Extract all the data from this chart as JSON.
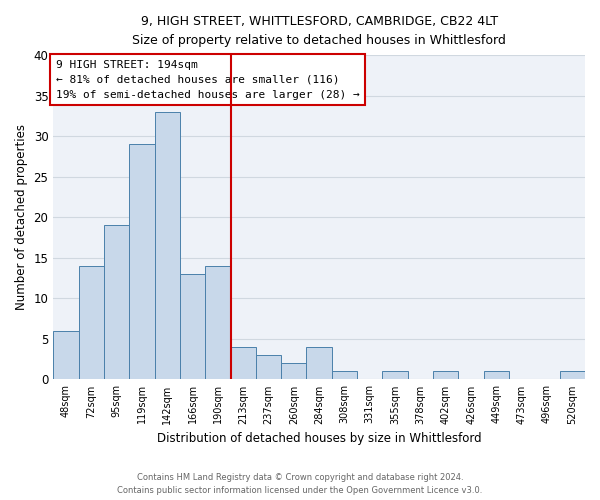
{
  "title_line1": "9, HIGH STREET, WHITTLESFORD, CAMBRIDGE, CB22 4LT",
  "title_line2": "Size of property relative to detached houses in Whittlesford",
  "xlabel": "Distribution of detached houses by size in Whittlesford",
  "ylabel": "Number of detached properties",
  "footer_line1": "Contains HM Land Registry data © Crown copyright and database right 2024.",
  "footer_line2": "Contains public sector information licensed under the Open Government Licence v3.0.",
  "bin_labels": [
    "48sqm",
    "72sqm",
    "95sqm",
    "119sqm",
    "142sqm",
    "166sqm",
    "190sqm",
    "213sqm",
    "237sqm",
    "260sqm",
    "284sqm",
    "308sqm",
    "331sqm",
    "355sqm",
    "378sqm",
    "402sqm",
    "426sqm",
    "449sqm",
    "473sqm",
    "496sqm",
    "520sqm"
  ],
  "bar_heights": [
    6,
    14,
    19,
    29,
    33,
    13,
    14,
    4,
    3,
    2,
    4,
    1,
    0,
    1,
    0,
    1,
    0,
    1,
    0,
    0,
    1
  ],
  "bar_color": "#c8d8ea",
  "bar_edge_color": "#4a80aa",
  "grid_color": "#d0d8e0",
  "background_color": "#eef2f8",
  "vline_color": "#cc0000",
  "annotation_text_line1": "9 HIGH STREET: 194sqm",
  "annotation_text_line2": "← 81% of detached houses are smaller (116)",
  "annotation_text_line3": "19% of semi-detached houses are larger (28) →",
  "ylim": [
    0,
    40
  ],
  "yticks": [
    0,
    5,
    10,
    15,
    20,
    25,
    30,
    35,
    40
  ]
}
